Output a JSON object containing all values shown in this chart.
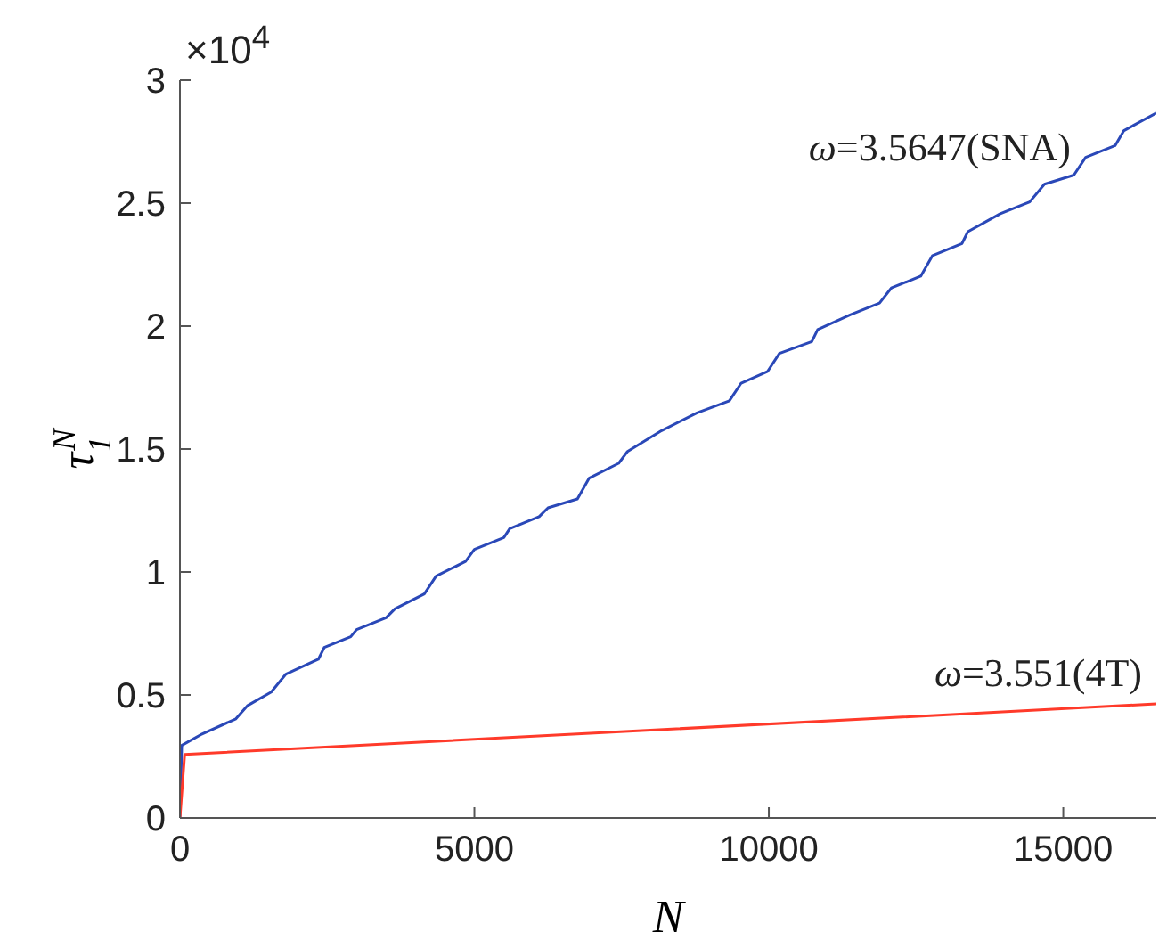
{
  "chart_data": {
    "type": "line",
    "xlabel": "N",
    "ylabel": "τ$_{1}$$^{N}$",
    "xlim": [
      0,
      16580
    ],
    "xticks": [
      0,
      5000,
      10000,
      15000
    ],
    "ylim": [
      0,
      3
    ],
    "yticks": [
      0,
      0.5,
      1,
      1.5,
      2,
      2.5,
      3
    ],
    "marker": "none",
    "line_style": "solid",
    "annotations": [
      "×10$^{4}$",
      "ω=3.5647(SNA)",
      "ω=3.551(4T)"
    ],
    "series": [
      {
        "color": "#2a48b8",
        "x": [
          0,
          30,
          350,
          950,
          1150,
          1550,
          1800,
          2350,
          2450,
          2900,
          3000,
          3500,
          3650,
          4150,
          4350,
          4850,
          5000,
          5500,
          5600,
          6100,
          6250,
          6750,
          6950,
          7450,
          7600,
          8180,
          8780,
          9330,
          9530,
          9980,
          10180,
          10730,
          10830,
          11380,
          11880,
          12080,
          12580,
          12780,
          13280,
          13380,
          13930,
          14430,
          14680,
          15180,
          15380,
          15880,
          16030,
          16580
        ],
        "values": [
          0,
          0.295,
          0.338,
          0.403,
          0.457,
          0.512,
          0.585,
          0.645,
          0.693,
          0.737,
          0.766,
          0.814,
          0.85,
          0.911,
          0.983,
          1.043,
          1.092,
          1.14,
          1.176,
          1.225,
          1.261,
          1.297,
          1.382,
          1.442,
          1.49,
          1.575,
          1.647,
          1.696,
          1.768,
          1.816,
          1.889,
          1.937,
          1.986,
          2.046,
          2.094,
          2.155,
          2.203,
          2.287,
          2.336,
          2.384,
          2.457,
          2.505,
          2.577,
          2.614,
          2.686,
          2.734,
          2.795,
          2.867
        ]
      },
      {
        "color": "#ff3a2a",
        "x": [
          0,
          80,
          16580
        ],
        "values": [
          0,
          0.258,
          0.464
        ]
      }
    ]
  }
}
